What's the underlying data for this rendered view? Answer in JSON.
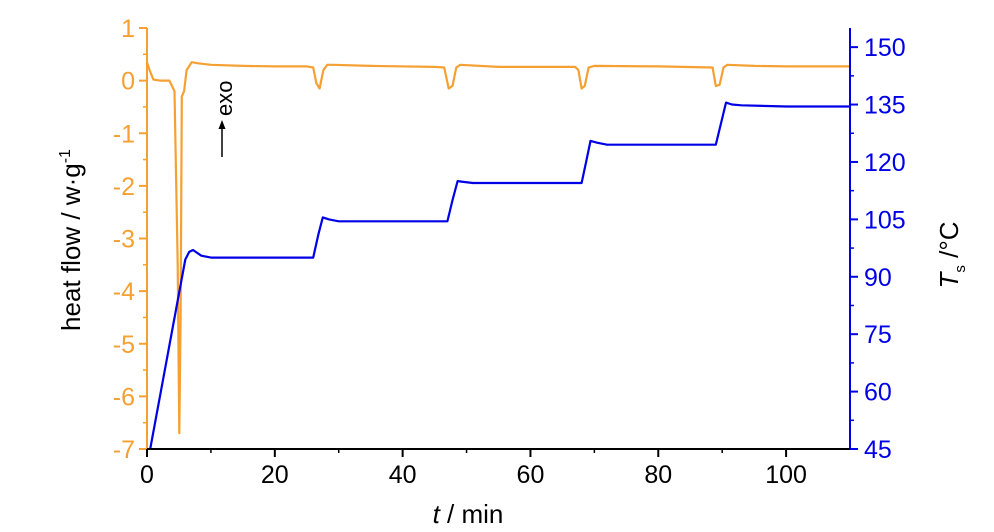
{
  "chart_data": {
    "type": "line",
    "xlabel": {
      "var": "t",
      "unit": " / min"
    },
    "ylabel_left": {
      "text": "heat flow / w·g",
      "sup": "-1"
    },
    "ylabel_right": {
      "var": "T",
      "sub": "s",
      "unit": " /°C"
    },
    "annotation": "exo",
    "xlim": [
      0,
      110
    ],
    "ylim_left": [
      -7,
      1
    ],
    "ylim_right": [
      45,
      155
    ],
    "x_ticks": [
      "0",
      "20",
      "40",
      "60",
      "80",
      "100"
    ],
    "y_left_ticks": [
      "1",
      "0",
      "-1",
      "-2",
      "-3",
      "-4",
      "-5",
      "-6",
      "-7"
    ],
    "y_right_ticks": [
      "150",
      "135",
      "120",
      "105",
      "90",
      "75",
      "60",
      "45"
    ],
    "colors": {
      "heat_flow": "#f5a032",
      "temperature": "#0000e6",
      "axes": "#000000"
    },
    "series": [
      {
        "axis": "left",
        "color": "#f5a032",
        "x": [
          0,
          0.4,
          1.0,
          2.0,
          3.5,
          4.3,
          4.8,
          5.05,
          5.25,
          5.45,
          5.8,
          6.2,
          7.0,
          8.0,
          10,
          15,
          20,
          25,
          26.0,
          26.5,
          27.0,
          27.6,
          28.2,
          29,
          35,
          45,
          46.5,
          47.2,
          47.8,
          48.4,
          49,
          55,
          67,
          67.5,
          68.0,
          68.5,
          69.1,
          70,
          80,
          88.5,
          89.0,
          89.6,
          90.2,
          90.8,
          95,
          100,
          110
        ],
        "y": [
          0.35,
          0.2,
          0.02,
          0.0,
          0.0,
          -0.2,
          -3.5,
          -6.7,
          -4.5,
          -0.3,
          -0.2,
          0.2,
          0.35,
          0.33,
          0.3,
          0.28,
          0.27,
          0.27,
          0.25,
          -0.05,
          -0.15,
          0.2,
          0.3,
          0.3,
          0.28,
          0.26,
          0.25,
          -0.15,
          -0.1,
          0.25,
          0.3,
          0.26,
          0.26,
          0.2,
          -0.15,
          -0.1,
          0.25,
          0.28,
          0.27,
          0.25,
          -0.1,
          -0.08,
          0.25,
          0.3,
          0.28,
          0.27,
          0.27
        ]
      },
      {
        "axis": "right",
        "color": "#0000e6",
        "x": [
          0.5,
          6.0,
          6.6,
          7.2,
          8.5,
          10,
          15,
          20,
          26,
          26.8,
          27.5,
          28.5,
          30,
          40,
          47,
          47.8,
          48.6,
          49.5,
          51,
          60,
          68,
          68.7,
          69.4,
          70.5,
          72,
          80,
          89,
          89.8,
          90.6,
          91.5,
          93,
          100,
          110
        ],
        "y": [
          45,
          94.5,
          96.5,
          97,
          95.5,
          95,
          95,
          95,
          95,
          101,
          105.5,
          105,
          104.5,
          104.5,
          104.5,
          110,
          115,
          114.8,
          114.5,
          114.5,
          114.5,
          120,
          125.5,
          125,
          124.5,
          124.5,
          124.5,
          130,
          135.5,
          135,
          134.8,
          134.5,
          134.5
        ]
      }
    ]
  }
}
